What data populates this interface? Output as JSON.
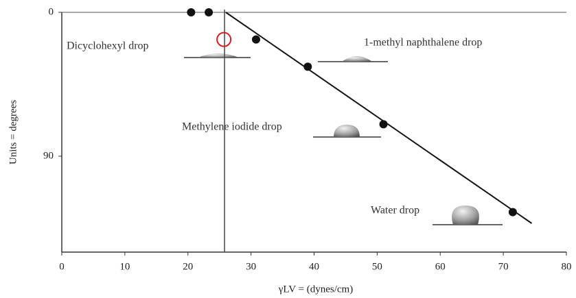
{
  "chart_data": {
    "type": "scatter",
    "x_label": "γLV = (dynes/cm)",
    "y_label": "Units = degrees",
    "xlim": [
      0,
      80
    ],
    "xticks": [
      0,
      10,
      20,
      30,
      40,
      50,
      60,
      70,
      80
    ],
    "ylim": [
      0,
      150
    ],
    "yticks": [
      0,
      90
    ],
    "y_inverted": true,
    "x": [
      20.5,
      23.3,
      30.8,
      39,
      51,
      71.5
    ],
    "values": [
      0,
      0,
      17,
      34,
      70,
      125
    ],
    "color": "#111111",
    "critical_point": {
      "x": 25.7,
      "y": 17,
      "color": "#d42020"
    },
    "fit_line": {
      "x": [
        26,
        74.5
      ],
      "values": [
        0,
        132
      ],
      "color": "#111111"
    },
    "vertical_line_x": 25.8,
    "annotations": [
      "Dicyclohexyl drop",
      "1-methyl naphthalene drop",
      "Methylene iodide drop",
      "Water drop"
    ]
  }
}
